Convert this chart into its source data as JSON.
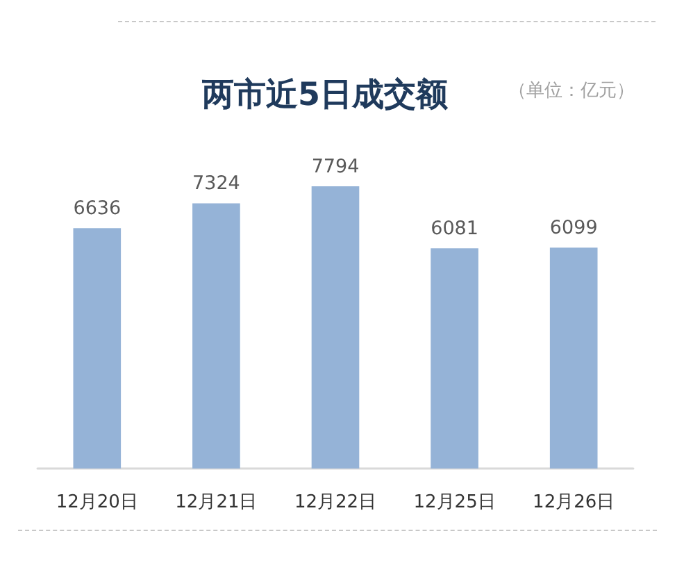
{
  "chart_data": {
    "type": "bar",
    "title": "两市近5日成交额",
    "subtitle": "（单位：亿元）",
    "categories": [
      "12月20日",
      "12月21日",
      "12月22日",
      "12月25日",
      "12月26日"
    ],
    "values": [
      6636,
      7324,
      7794,
      6081,
      6099
    ],
    "color": "#95b3d7",
    "data_labels": true
  }
}
